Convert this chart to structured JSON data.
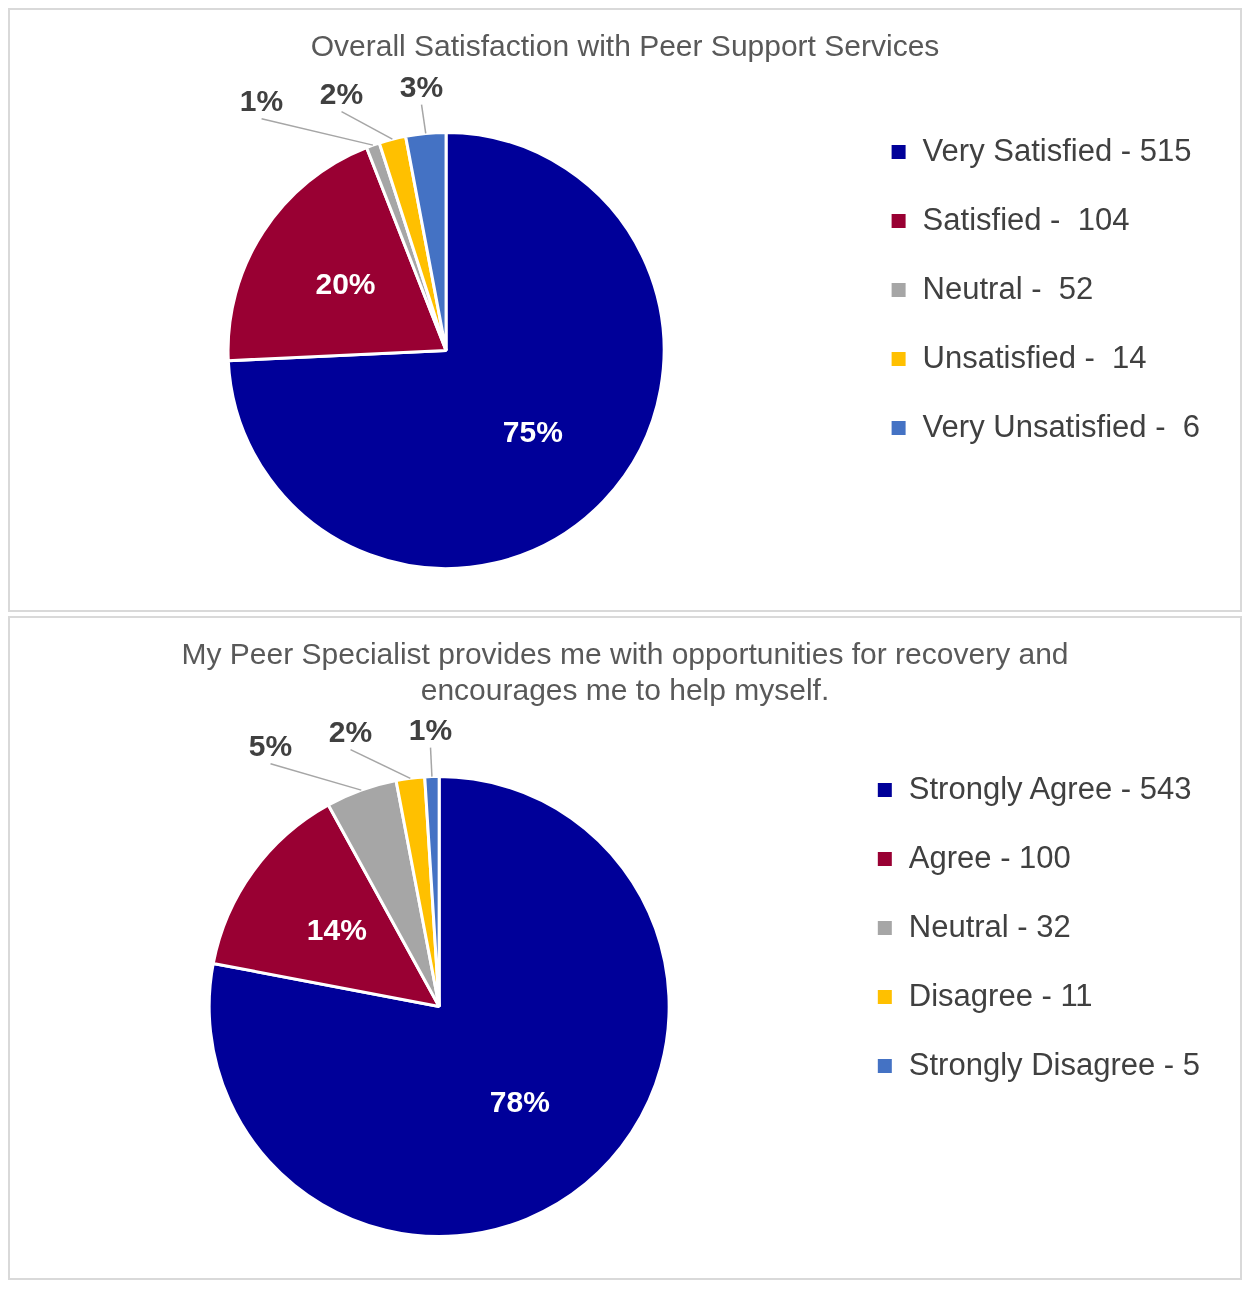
{
  "chart_data": [
    {
      "type": "pie",
      "title": "Overall Satisfaction with Peer Support Services",
      "categories": [
        "Very Satisfied - 515",
        "Satisfied -  104",
        "Neutral -  52",
        "Unsatisfied -  14",
        "Very Unsatisfied -  6"
      ],
      "values": [
        75,
        20,
        1,
        2,
        3
      ],
      "colors": [
        "#000099",
        "#990033",
        "#a6a6a6",
        "#ffc000",
        "#4472c4"
      ],
      "value_labels": [
        "75%",
        "20%",
        "1%",
        "2%",
        "3%"
      ],
      "legend": "right"
    },
    {
      "type": "pie",
      "title": "My Peer Specialist provides me with opportunities for recovery and encourages me to help myself.",
      "categories": [
        "Strongly Agree - 543",
        "Agree - 100",
        "Neutral - 32",
        "Disagree - 11",
        "Strongly Disagree - 5"
      ],
      "values": [
        78,
        14,
        5,
        2,
        1
      ],
      "colors": [
        "#000099",
        "#990033",
        "#a6a6a6",
        "#ffc000",
        "#4472c4"
      ],
      "value_labels": [
        "78%",
        "14%",
        "5%",
        "2%",
        "1%"
      ],
      "legend": "right"
    }
  ]
}
